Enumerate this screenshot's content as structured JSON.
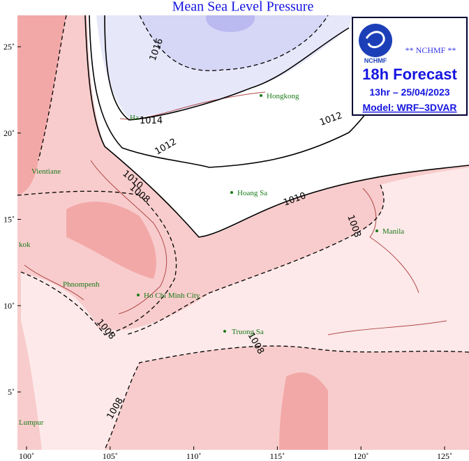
{
  "title": "Mean Sea Level Pressure",
  "legend": {
    "agency": "** NCHMF **",
    "logo_text": "NCHMF",
    "forecast": "18h Forecast",
    "time": "13hr – 25/04/2023",
    "model": "Model: WRF–3DVAR"
  },
  "contour_labels": [
    "1016",
    "1014",
    "1012",
    "1012",
    "1010",
    "1010",
    "1008",
    "1008",
    "1008",
    "1008",
    "1008"
  ],
  "cities": [
    "Hongkong",
    "Ha",
    "Vientiane",
    "Hoang Sa",
    "Manila",
    "kok",
    "Phnompenh",
    "Ho Chi Minh City",
    "Truong Sa",
    "Lumpur"
  ],
  "lon_ticks": [
    {
      "value": 100,
      "label": "100˚"
    },
    {
      "value": 105,
      "label": "105˚"
    },
    {
      "value": 110,
      "label": "110˚"
    },
    {
      "value": 115,
      "label": "115˚"
    },
    {
      "value": 120,
      "label": "120˚"
    },
    {
      "value": 125,
      "label": "125˚"
    }
  ],
  "lat_ticks": [
    {
      "value": 5,
      "label": "5˚"
    },
    {
      "value": 10,
      "label": "10˚"
    },
    {
      "value": 15,
      "label": "15˚"
    },
    {
      "value": 20,
      "label": "20˚"
    },
    {
      "value": 25,
      "label": "25˚"
    }
  ]
}
